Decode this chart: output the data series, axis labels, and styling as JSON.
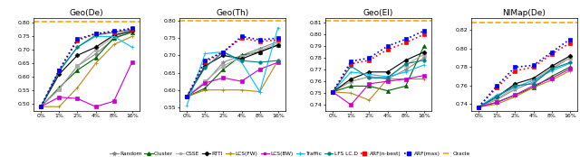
{
  "x_ticks": [
    "0%",
    "1%",
    "2%",
    "4%",
    "8%",
    "16%"
  ],
  "x_values": [
    0,
    1,
    2,
    3,
    4,
    5
  ],
  "subplots": [
    {
      "title": "Geo(De)",
      "ylim": [
        0.475,
        0.818
      ],
      "yticks": [
        0.5,
        0.55,
        0.6,
        0.65,
        0.7,
        0.75,
        0.8
      ],
      "oracle": 0.805,
      "series": {
        "Random": [
          0.49,
          0.555,
          0.64,
          0.685,
          0.74,
          0.77
        ],
        "Cluster": [
          0.49,
          0.56,
          0.625,
          0.67,
          0.745,
          0.765
        ],
        "CSSE": [
          0.49,
          0.555,
          0.64,
          0.7,
          0.75,
          0.77
        ],
        "RTTl": [
          0.49,
          0.61,
          0.68,
          0.71,
          0.755,
          0.77
        ],
        "LCS(FW)": [
          0.49,
          0.49,
          0.56,
          0.65,
          0.72,
          0.75
        ],
        "LCS(BW)": [
          0.49,
          0.525,
          0.52,
          0.49,
          0.51,
          0.655
        ],
        "Traffic": [
          0.49,
          0.625,
          0.71,
          0.75,
          0.75,
          0.71
        ],
        "LFS_LC_D": [
          0.49,
          0.62,
          0.71,
          0.755,
          0.765,
          0.775
        ],
        "ARF(n-best)": [
          0.49,
          0.625,
          0.735,
          0.76,
          0.765,
          0.778
        ],
        "ARF(max)": [
          0.49,
          0.625,
          0.74,
          0.76,
          0.77,
          0.78
        ]
      }
    },
    {
      "title": "Geo(Th)",
      "ylim": [
        0.54,
        0.808
      ],
      "yticks": [
        0.55,
        0.6,
        0.65,
        0.7,
        0.75,
        0.8
      ],
      "oracle": 0.8,
      "series": {
        "Random": [
          0.58,
          0.62,
          0.68,
          0.7,
          0.72,
          0.74
        ],
        "Cluster": [
          0.58,
          0.605,
          0.66,
          0.7,
          0.71,
          0.73
        ],
        "CSSE": [
          0.58,
          0.625,
          0.67,
          0.695,
          0.715,
          0.735
        ],
        "RTTl": [
          0.58,
          0.67,
          0.7,
          0.69,
          0.71,
          0.73
        ],
        "LCS(FW)": [
          0.58,
          0.6,
          0.6,
          0.6,
          0.595,
          0.685
        ],
        "LCS(BW)": [
          0.58,
          0.62,
          0.635,
          0.625,
          0.66,
          0.68
        ],
        "Traffic": [
          0.555,
          0.705,
          0.71,
          0.68,
          0.595,
          0.78
        ],
        "LFS_LC_D": [
          0.58,
          0.665,
          0.71,
          0.685,
          0.68,
          0.685
        ],
        "ARF(n-best)": [
          0.58,
          0.68,
          0.71,
          0.75,
          0.74,
          0.745
        ],
        "ARF(max)": [
          0.58,
          0.685,
          0.71,
          0.755,
          0.745,
          0.75
        ]
      }
    },
    {
      "title": "Geo(El)",
      "ylim": [
        0.735,
        0.814
      ],
      "yticks": [
        0.74,
        0.75,
        0.76,
        0.77,
        0.78,
        0.79,
        0.8,
        0.81
      ],
      "oracle": 0.812,
      "series": {
        "Random": [
          0.751,
          0.76,
          0.764,
          0.762,
          0.77,
          0.78
        ],
        "Cluster": [
          0.751,
          0.756,
          0.756,
          0.752,
          0.756,
          0.79
        ],
        "CSSE": [
          0.751,
          0.76,
          0.764,
          0.763,
          0.774,
          0.783
        ],
        "RTTl": [
          0.751,
          0.762,
          0.768,
          0.768,
          0.778,
          0.785
        ],
        "LCS(FW)": [
          0.751,
          0.75,
          0.744,
          0.762,
          0.762,
          0.762
        ],
        "LCS(BW)": [
          0.751,
          0.74,
          0.758,
          0.76,
          0.762,
          0.765
        ],
        "Traffic": [
          0.751,
          0.768,
          0.766,
          0.764,
          0.768,
          0.774
        ],
        "LFS_LC_D": [
          0.751,
          0.773,
          0.763,
          0.763,
          0.775,
          0.778
        ],
        "ARF(n-best)": [
          0.751,
          0.775,
          0.778,
          0.787,
          0.793,
          0.8
        ],
        "ARF(max)": [
          0.751,
          0.777,
          0.78,
          0.79,
          0.796,
          0.803
        ]
      }
    },
    {
      "title": "NlMap(De)",
      "ylim": [
        0.733,
        0.833
      ],
      "yticks": [
        0.74,
        0.76,
        0.78,
        0.8,
        0.82
      ],
      "oracle": 0.828,
      "series": {
        "Random": [
          0.737,
          0.745,
          0.756,
          0.764,
          0.778,
          0.79
        ],
        "Cluster": [
          0.737,
          0.742,
          0.75,
          0.758,
          0.77,
          0.78
        ],
        "CSSE": [
          0.737,
          0.746,
          0.758,
          0.766,
          0.779,
          0.79
        ],
        "RTTl": [
          0.737,
          0.748,
          0.762,
          0.768,
          0.781,
          0.792
        ],
        "LCS(FW)": [
          0.737,
          0.74,
          0.748,
          0.758,
          0.766,
          0.776
        ],
        "LCS(BW)": [
          0.737,
          0.742,
          0.75,
          0.76,
          0.768,
          0.778
        ],
        "Traffic": [
          0.737,
          0.75,
          0.758,
          0.766,
          0.776,
          0.784
        ],
        "LFS_LC_D": [
          0.737,
          0.748,
          0.76,
          0.762,
          0.778,
          0.785
        ],
        "ARF(n-best)": [
          0.737,
          0.758,
          0.776,
          0.78,
          0.794,
          0.806
        ],
        "ARF(max)": [
          0.737,
          0.76,
          0.78,
          0.782,
          0.796,
          0.81
        ]
      }
    }
  ],
  "line_styles": {
    "Random": {
      "color": "#888888",
      "linestyle": "-",
      "marker": "*",
      "markersize": 3.5,
      "lw": 0.8
    },
    "Cluster": {
      "color": "#006400",
      "linestyle": "-",
      "marker": "^",
      "markersize": 3.0,
      "lw": 0.8
    },
    "CSSE": {
      "color": "#aaaaaa",
      "linestyle": "-",
      "marker": "s",
      "markersize": 2.5,
      "lw": 0.8
    },
    "RTTl": {
      "color": "#000000",
      "linestyle": "-",
      "marker": "D",
      "markersize": 2.5,
      "lw": 0.8
    },
    "LCS(FW)": {
      "color": "#b8860b",
      "linestyle": "-",
      "marker": "+",
      "markersize": 3.5,
      "lw": 0.8
    },
    "LCS(BW)": {
      "color": "#cc00cc",
      "linestyle": "-",
      "marker": "s",
      "markersize": 2.5,
      "lw": 0.8
    },
    "Traffic": {
      "color": "#00bfff",
      "linestyle": "-",
      "marker": "+",
      "markersize": 3.5,
      "lw": 0.8
    },
    "LFS_LC_D": {
      "color": "#008080",
      "linestyle": "-",
      "marker": "o",
      "markersize": 2.5,
      "lw": 0.8
    },
    "ARF(n-best)": {
      "color": "#ff0000",
      "linestyle": ":",
      "marker": "s",
      "markersize": 3.5,
      "lw": 1.2
    },
    "ARF(max)": {
      "color": "#0000ff",
      "linestyle": ":",
      "marker": "s",
      "markersize": 3.5,
      "lw": 1.2
    },
    "Oracle": {
      "color": "#ffa500",
      "linestyle": "--",
      "marker": null,
      "markersize": 0,
      "lw": 1.2
    }
  },
  "legend_order": [
    "Random",
    "Cluster",
    "CSSE",
    "RTTl",
    "LCS(FW)",
    "LCS(BW)",
    "Traffic",
    "LFS_LC_D",
    "ARF(n-best)",
    "ARF(max)",
    "Oracle"
  ],
  "legend_labels": [
    "Random",
    "Cluster",
    "CSSE",
    "RTTl",
    "LCS(FW)",
    "LCS(BW)",
    "Traffic",
    "LFS LC.D",
    "ARF(n-best)",
    "ARF(max)",
    "Oracle"
  ]
}
